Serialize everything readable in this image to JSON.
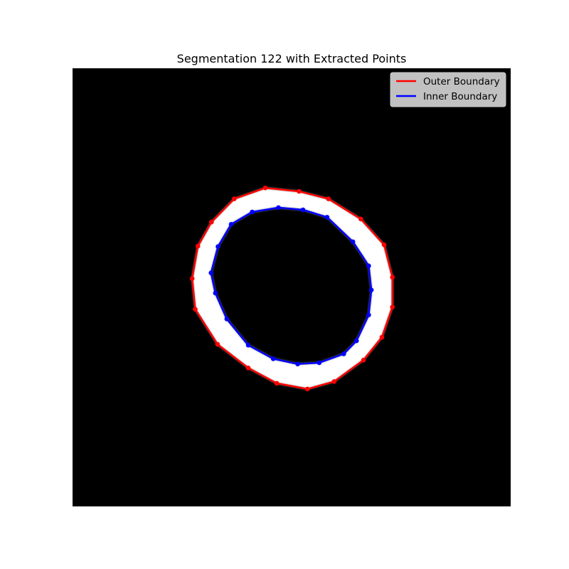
{
  "chart_data": {
    "type": "scatter",
    "title": "Segmentation 122 with Extracted Points",
    "xlabel": "",
    "ylabel": "",
    "axes_visible": false,
    "image_extent": {
      "x": [
        0,
        100
      ],
      "y": [
        0,
        100
      ]
    },
    "background_image": "binary segmentation mask: white ring on black",
    "legend": {
      "placement": "top-right",
      "entries": [
        {
          "label": "Outer Boundary",
          "color": "#ff0000"
        },
        {
          "label": "Inner Boundary",
          "color": "#0000ff"
        }
      ]
    },
    "series": [
      {
        "name": "Outer Boundary",
        "color": "#ff0000",
        "closed": true,
        "points": [
          [
            44.0,
            27.3
          ],
          [
            51.7,
            28.1
          ],
          [
            58.4,
            29.8
          ],
          [
            65.8,
            34.4
          ],
          [
            71.1,
            40.3
          ],
          [
            73.0,
            47.7
          ],
          [
            73.0,
            54.5
          ],
          [
            70.6,
            61.4
          ],
          [
            66.4,
            66.6
          ],
          [
            59.7,
            71.5
          ],
          [
            53.6,
            73.2
          ],
          [
            46.6,
            71.9
          ],
          [
            40.1,
            68.4
          ],
          [
            33.1,
            63.0
          ],
          [
            28.0,
            55.0
          ],
          [
            27.3,
            48.0
          ],
          [
            28.6,
            40.6
          ],
          [
            31.7,
            35.1
          ],
          [
            36.9,
            29.8
          ]
        ]
      },
      {
        "name": "Inner Boundary",
        "color": "#0000ff",
        "closed": true,
        "points": [
          [
            47.0,
            31.8
          ],
          [
            52.6,
            32.3
          ],
          [
            58.1,
            34.0
          ],
          [
            64.0,
            39.6
          ],
          [
            67.6,
            45.1
          ],
          [
            68.2,
            50.6
          ],
          [
            67.6,
            56.3
          ],
          [
            64.8,
            62.2
          ],
          [
            61.9,
            65.2
          ],
          [
            56.3,
            67.2
          ],
          [
            51.4,
            67.5
          ],
          [
            45.8,
            66.3
          ],
          [
            40.1,
            63.2
          ],
          [
            35.2,
            57.2
          ],
          [
            32.6,
            51.3
          ],
          [
            31.6,
            46.7
          ],
          [
            33.2,
            40.7
          ],
          [
            36.2,
            35.6
          ],
          [
            41.0,
            32.8
          ]
        ]
      }
    ]
  }
}
